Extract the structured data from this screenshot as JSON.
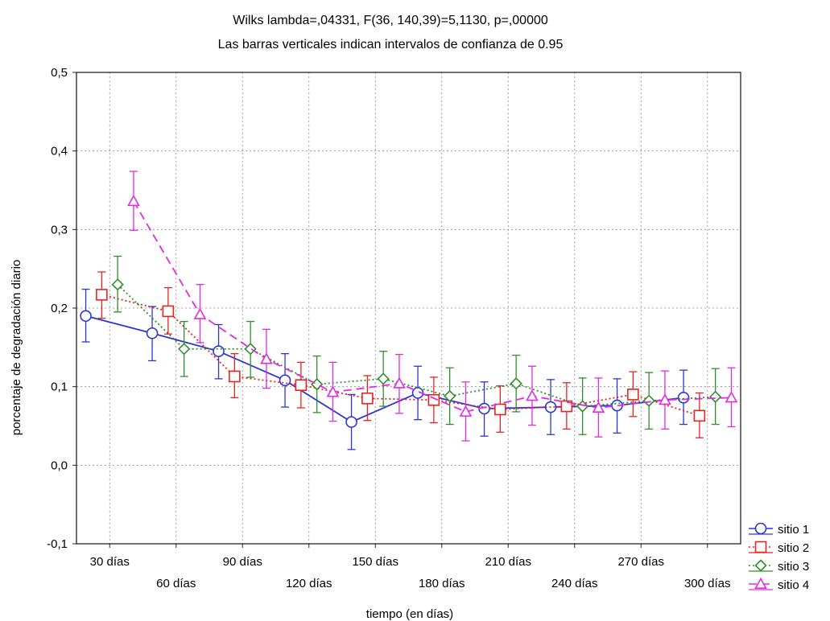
{
  "chart_data": {
    "type": "line",
    "title": "Wilks lambda=,04331, F(36, 140,39)=5,1130, p=,00000",
    "subtitle": "Las barras verticales indican intervalos de confianza de 0.95",
    "xlabel": "tiempo (en días)",
    "ylabel": "porcentaje de degradación diario",
    "ylim": [
      -0.1,
      0.5
    ],
    "yticks": [
      -0.1,
      0.0,
      0.1,
      0.2,
      0.3,
      0.4,
      0.5
    ],
    "ytick_labels": [
      "-0,1",
      "0,0",
      "0,1",
      "0,2",
      "0,3",
      "0,4",
      "0,5"
    ],
    "categories": [
      "30 días",
      "60 días",
      "90 días",
      "120 días",
      "150 días",
      "180 días",
      "210 días",
      "240 días",
      "270 días",
      "300 días"
    ],
    "grid": true,
    "legend_position": "bottom-right",
    "error_bars": "95% confidence interval",
    "series": [
      {
        "name": "sitio 1",
        "color": "#2b35d8",
        "marker": "circle",
        "dash": "solid",
        "values": [
          0.19,
          0.168,
          0.145,
          0.108,
          0.055,
          0.092,
          0.072,
          0.074,
          0.076,
          0.086
        ],
        "lower": [
          0.157,
          0.133,
          0.11,
          0.074,
          0.02,
          0.058,
          0.037,
          0.039,
          0.041,
          0.052
        ],
        "upper": [
          0.224,
          0.202,
          0.179,
          0.142,
          0.09,
          0.126,
          0.106,
          0.109,
          0.11,
          0.121
        ]
      },
      {
        "name": "sitio 2",
        "color": "#e8231f",
        "marker": "square",
        "dash": "dotted",
        "values": [
          0.217,
          0.196,
          0.113,
          0.102,
          0.085,
          0.083,
          0.071,
          0.075,
          0.09,
          0.063
        ],
        "lower": [
          0.187,
          0.167,
          0.086,
          0.073,
          0.057,
          0.054,
          0.042,
          0.046,
          0.062,
          0.035
        ],
        "upper": [
          0.246,
          0.226,
          0.142,
          0.131,
          0.114,
          0.112,
          0.101,
          0.105,
          0.119,
          0.092
        ]
      },
      {
        "name": "sitio 3",
        "color": "#2f8f2a",
        "marker": "diamond",
        "dash": "dotted",
        "values": [
          0.23,
          0.148,
          0.148,
          0.103,
          0.11,
          0.088,
          0.104,
          0.075,
          0.082,
          0.087
        ],
        "lower": [
          0.195,
          0.113,
          0.112,
          0.067,
          0.075,
          0.052,
          0.068,
          0.039,
          0.046,
          0.052
        ],
        "upper": [
          0.266,
          0.183,
          0.183,
          0.139,
          0.145,
          0.124,
          0.14,
          0.111,
          0.118,
          0.123
        ]
      },
      {
        "name": "sitio 4",
        "color": "#e22ae0",
        "marker": "triangle",
        "dash": "dashed",
        "values": [
          0.336,
          0.192,
          0.135,
          0.093,
          0.104,
          0.068,
          0.088,
          0.073,
          0.083,
          0.086
        ],
        "lower": [
          0.299,
          0.156,
          0.098,
          0.056,
          0.066,
          0.031,
          0.051,
          0.036,
          0.046,
          0.049
        ],
        "upper": [
          0.374,
          0.23,
          0.173,
          0.131,
          0.141,
          0.106,
          0.126,
          0.111,
          0.12,
          0.124
        ]
      }
    ]
  }
}
